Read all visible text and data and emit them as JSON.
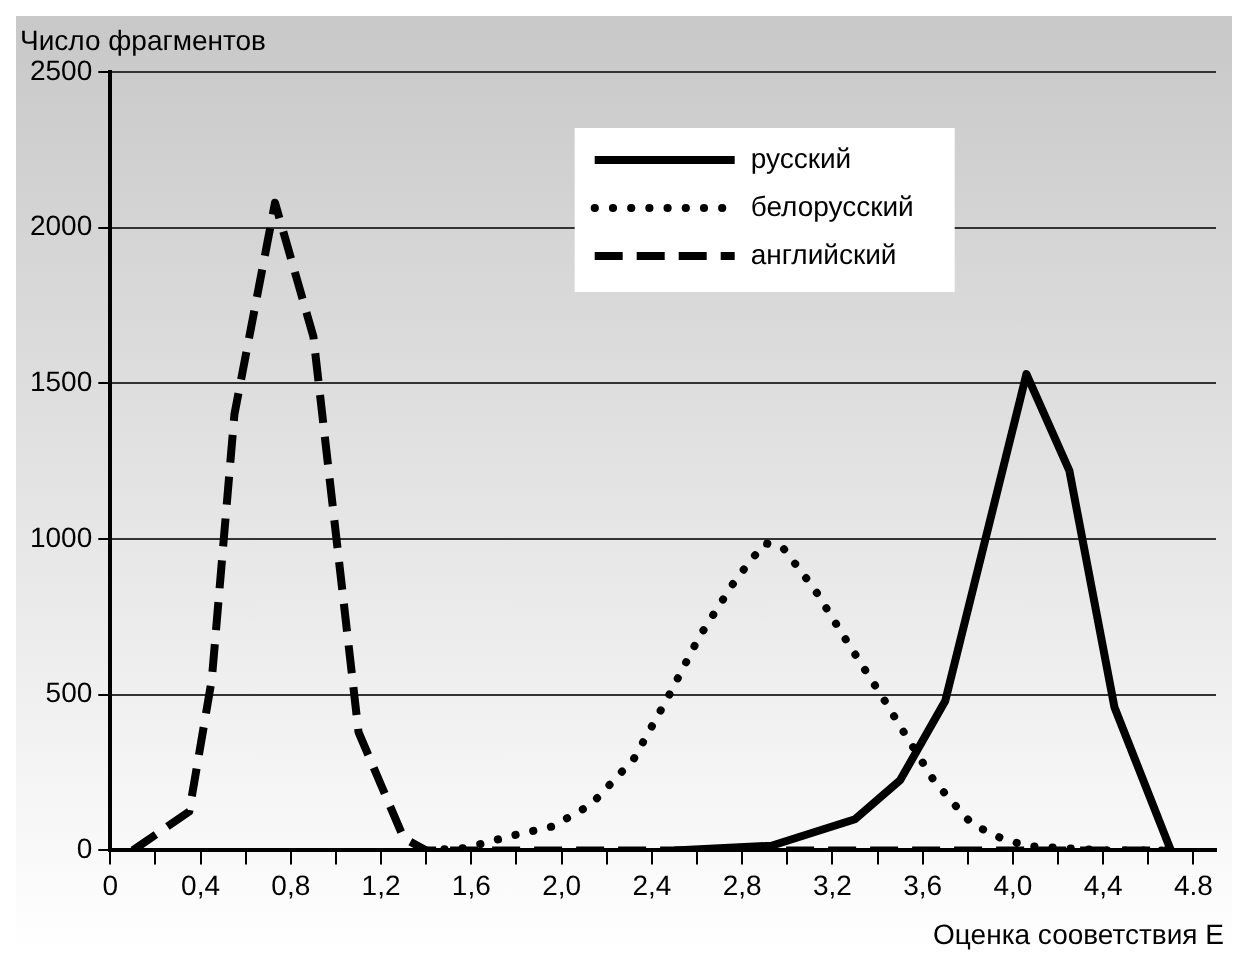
{
  "chart_data": {
    "type": "line",
    "xlabel": "Оценка сооветствия E",
    "ylabel": "Число фрагментов",
    "xlim": [
      0,
      4.9
    ],
    "ylim": [
      0,
      2500
    ],
    "xticks": [
      0,
      {
        "value": 0.2,
        "label": null
      },
      {
        "value": 0.4,
        "label": "0,4"
      },
      {
        "value": 0.6,
        "label": null
      },
      {
        "value": 0.8,
        "label": "0,8"
      },
      {
        "value": 1.0,
        "label": null
      },
      {
        "value": 1.2,
        "label": "1,2"
      },
      {
        "value": 1.4,
        "label": null
      },
      {
        "value": 1.6,
        "label": "1,6"
      },
      {
        "value": 1.8,
        "label": null
      },
      {
        "value": 2.0,
        "label": "2,0"
      },
      {
        "value": 2.2,
        "label": null
      },
      {
        "value": 2.4,
        "label": "2,4"
      },
      {
        "value": 2.6,
        "label": null
      },
      {
        "value": 2.8,
        "label": "2,8"
      },
      {
        "value": 3.0,
        "label": null
      },
      {
        "value": 3.2,
        "label": "3,2"
      },
      {
        "value": 3.4,
        "label": null
      },
      {
        "value": 3.6,
        "label": "3,6"
      },
      {
        "value": 3.8,
        "label": null
      },
      {
        "value": 4.0,
        "label": "4,0"
      },
      {
        "value": 4.2,
        "label": null
      },
      {
        "value": 4.4,
        "label": "4,4"
      },
      {
        "value": 4.6,
        "label": null
      },
      {
        "value": 4.8,
        "label": "4.8"
      }
    ],
    "yticks": [
      0,
      500,
      1000,
      1500,
      2000,
      2500
    ],
    "grid": "y",
    "legend": "top",
    "marker": "none",
    "series": [
      {
        "name": "русский",
        "color": "#000000",
        "line_style": "solid",
        "x": [
          2.5,
          2.93,
          3.3,
          3.5,
          3.7,
          4.06,
          4.25,
          4.45,
          4.7
        ],
        "values": [
          0,
          15,
          100,
          225,
          480,
          1530,
          1220,
          460,
          0
        ]
      },
      {
        "name": "белорусский",
        "color": "#000000",
        "line_style": "dotted",
        "x": [
          1.4,
          1.57,
          1.79,
          1.96,
          2.13,
          2.23,
          2.32,
          2.47,
          2.61,
          2.77,
          2.9,
          2.98,
          3.12,
          3.27,
          3.43,
          3.5,
          3.65,
          3.75,
          3.82,
          3.94,
          4.06,
          4.4,
          4.7
        ],
        "values": [
          0,
          7,
          49,
          77,
          147,
          224,
          294,
          490,
          686,
          868,
          987,
          973,
          840,
          665,
          483,
          399,
          224,
          140,
          84,
          42,
          14,
          0,
          0
        ]
      },
      {
        "name": "английский",
        "color": "#000000",
        "line_style": "dashed",
        "x": [
          0.1,
          0.35,
          0.45,
          0.55,
          0.73,
          0.9,
          1.1,
          1.3,
          1.4,
          2.0,
          3.0,
          4.0,
          4.7
        ],
        "values": [
          0,
          125,
          550,
          1400,
          2080,
          1650,
          380,
          40,
          0,
          0,
          0,
          0,
          0
        ]
      }
    ]
  }
}
